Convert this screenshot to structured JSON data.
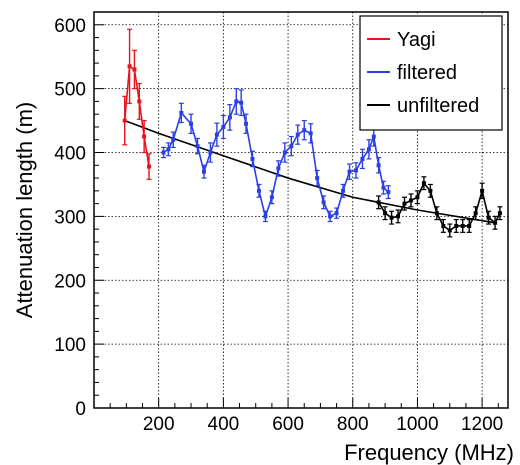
{
  "chart_data": {
    "type": "scatter",
    "title": "",
    "xlabel": "Frequency (MHz)",
    "ylabel": "Attenuation length (m)",
    "xlim": [
      0,
      1280
    ],
    "ylim": [
      0,
      620
    ],
    "x_ticks": [
      200,
      400,
      600,
      800,
      1000,
      1200
    ],
    "y_ticks": [
      0,
      100,
      200,
      300,
      400,
      500,
      600
    ],
    "x_tick_labels": [
      "200",
      "400",
      "600",
      "800",
      "1000",
      "1200"
    ],
    "y_tick_labels": [
      "0",
      "100",
      "200",
      "300",
      "400",
      "500",
      "600"
    ],
    "grid": true,
    "legend_position": "top-right",
    "series": [
      {
        "name": "Yagi",
        "color": "#e8141b",
        "style": "points-line-errorbars",
        "points": [
          {
            "x": 95,
            "y": 450,
            "err": 38
          },
          {
            "x": 110,
            "y": 535,
            "err": 58
          },
          {
            "x": 125,
            "y": 530,
            "err": 30
          },
          {
            "x": 140,
            "y": 480,
            "err": 28
          },
          {
            "x": 155,
            "y": 425,
            "err": 25
          },
          {
            "x": 170,
            "y": 378,
            "err": 20
          }
        ]
      },
      {
        "name": "filtered",
        "color": "#2b3fe6",
        "style": "points-line-errorbars",
        "points": [
          {
            "x": 215,
            "y": 400,
            "err": 8
          },
          {
            "x": 230,
            "y": 405,
            "err": 10
          },
          {
            "x": 245,
            "y": 420,
            "err": 12
          },
          {
            "x": 270,
            "y": 462,
            "err": 15
          },
          {
            "x": 300,
            "y": 445,
            "err": 15
          },
          {
            "x": 320,
            "y": 410,
            "err": 12
          },
          {
            "x": 340,
            "y": 370,
            "err": 10
          },
          {
            "x": 360,
            "y": 400,
            "err": 15
          },
          {
            "x": 380,
            "y": 428,
            "err": 18
          },
          {
            "x": 400,
            "y": 440,
            "err": 18
          },
          {
            "x": 420,
            "y": 455,
            "err": 20
          },
          {
            "x": 440,
            "y": 480,
            "err": 20
          },
          {
            "x": 455,
            "y": 478,
            "err": 20
          },
          {
            "x": 470,
            "y": 445,
            "err": 15
          },
          {
            "x": 490,
            "y": 390,
            "err": 12
          },
          {
            "x": 510,
            "y": 340,
            "err": 10
          },
          {
            "x": 530,
            "y": 300,
            "err": 8
          },
          {
            "x": 550,
            "y": 330,
            "err": 10
          },
          {
            "x": 570,
            "y": 375,
            "err": 12
          },
          {
            "x": 590,
            "y": 400,
            "err": 15
          },
          {
            "x": 610,
            "y": 410,
            "err": 15
          },
          {
            "x": 630,
            "y": 428,
            "err": 15
          },
          {
            "x": 650,
            "y": 435,
            "err": 15
          },
          {
            "x": 670,
            "y": 430,
            "err": 15
          },
          {
            "x": 690,
            "y": 360,
            "err": 12
          },
          {
            "x": 710,
            "y": 322,
            "err": 10
          },
          {
            "x": 730,
            "y": 300,
            "err": 8
          },
          {
            "x": 750,
            "y": 305,
            "err": 8
          },
          {
            "x": 770,
            "y": 340,
            "err": 10
          },
          {
            "x": 790,
            "y": 370,
            "err": 12
          },
          {
            "x": 810,
            "y": 372,
            "err": 12
          },
          {
            "x": 830,
            "y": 390,
            "err": 15
          },
          {
            "x": 850,
            "y": 405,
            "err": 15
          },
          {
            "x": 865,
            "y": 425,
            "err": 15
          },
          {
            "x": 880,
            "y": 380,
            "err": 12
          },
          {
            "x": 895,
            "y": 345,
            "err": 10
          },
          {
            "x": 910,
            "y": 338,
            "err": 10
          }
        ]
      },
      {
        "name": "unfiltered",
        "color": "#000000",
        "style": "points-line-errorbars",
        "points": [
          {
            "x": 880,
            "y": 322,
            "err": 10
          },
          {
            "x": 900,
            "y": 305,
            "err": 10
          },
          {
            "x": 920,
            "y": 298,
            "err": 10
          },
          {
            "x": 940,
            "y": 300,
            "err": 10
          },
          {
            "x": 960,
            "y": 320,
            "err": 10
          },
          {
            "x": 980,
            "y": 325,
            "err": 10
          },
          {
            "x": 1000,
            "y": 330,
            "err": 10
          },
          {
            "x": 1020,
            "y": 352,
            "err": 10
          },
          {
            "x": 1040,
            "y": 340,
            "err": 10
          },
          {
            "x": 1060,
            "y": 305,
            "err": 10
          },
          {
            "x": 1080,
            "y": 285,
            "err": 10
          },
          {
            "x": 1100,
            "y": 278,
            "err": 10
          },
          {
            "x": 1120,
            "y": 285,
            "err": 10
          },
          {
            "x": 1140,
            "y": 285,
            "err": 10
          },
          {
            "x": 1160,
            "y": 285,
            "err": 10
          },
          {
            "x": 1180,
            "y": 305,
            "err": 10
          },
          {
            "x": 1200,
            "y": 340,
            "err": 12
          },
          {
            "x": 1220,
            "y": 298,
            "err": 10
          },
          {
            "x": 1240,
            "y": 290,
            "err": 10
          },
          {
            "x": 1255,
            "y": 305,
            "err": 10
          }
        ]
      }
    ],
    "fit_curve": {
      "color": "#000000",
      "points": [
        {
          "x": 95,
          "y": 450
        },
        {
          "x": 200,
          "y": 430
        },
        {
          "x": 400,
          "y": 395
        },
        {
          "x": 600,
          "y": 360
        },
        {
          "x": 800,
          "y": 330
        },
        {
          "x": 1000,
          "y": 310
        },
        {
          "x": 1240,
          "y": 290
        }
      ]
    }
  }
}
